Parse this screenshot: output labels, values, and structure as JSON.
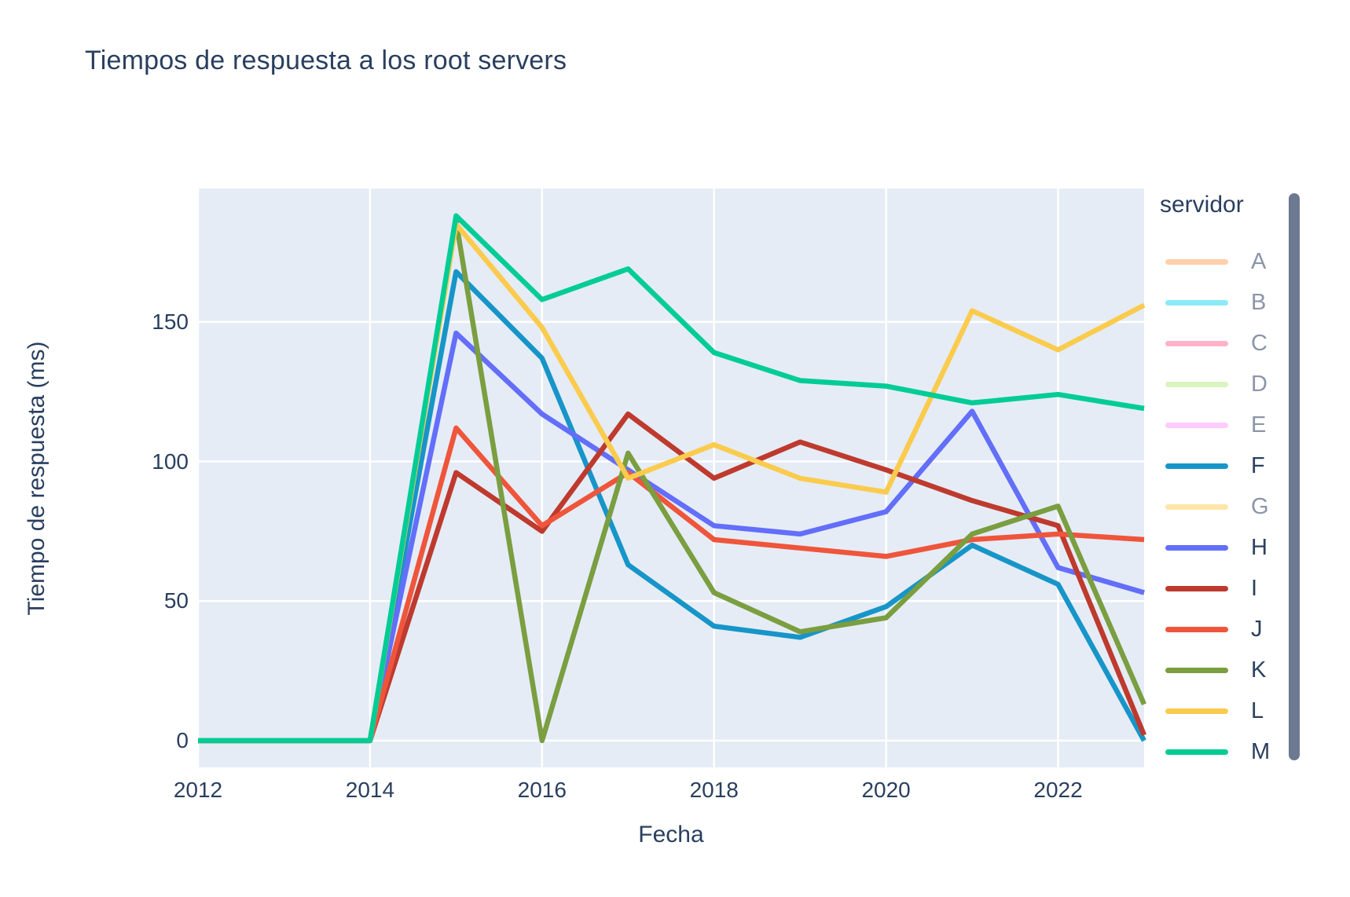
{
  "title": "Tiempos de respuesta a los root servers",
  "colors": {
    "plot_bg": "#e5ecf6",
    "grid": "#ffffff",
    "text": "#2a3f5f",
    "muted_text": "#8b95a9",
    "legend_scrollbar": "#6d7990"
  },
  "chart_data": {
    "type": "line",
    "title": "Tiempos de respuesta a los root servers",
    "xlabel": "Fecha",
    "ylabel": "Tiempo de respuesta (ms)",
    "legend_title": "servidor",
    "grid": true,
    "legend_position": "right",
    "x": [
      2012,
      2013,
      2014,
      2015,
      2016,
      2017,
      2018,
      2019,
      2020,
      2021,
      2022,
      2023
    ],
    "x_tick_labels": [
      "2012",
      "2014",
      "2016",
      "2018",
      "2020",
      "2022"
    ],
    "x_ticks": [
      2012,
      2014,
      2016,
      2018,
      2020,
      2022
    ],
    "y_tick_labels": [
      "0",
      "50",
      "100",
      "150"
    ],
    "y_ticks": [
      0,
      50,
      100,
      150
    ],
    "x_range": [
      2012,
      2023
    ],
    "y_range": [
      -9.6,
      197.8
    ],
    "series": [
      {
        "name": "A",
        "color": "#FFA15A",
        "visible": false
      },
      {
        "name": "B",
        "color": "#19D3F3",
        "visible": false
      },
      {
        "name": "C",
        "color": "#FF6692",
        "visible": false
      },
      {
        "name": "D",
        "color": "#B6E880",
        "visible": false
      },
      {
        "name": "E",
        "color": "#FF97FF",
        "visible": false
      },
      {
        "name": "F",
        "color": "#1795C8",
        "visible": true,
        "values": [
          0,
          0,
          0,
          168,
          137,
          63,
          41,
          37,
          48,
          70,
          56,
          0
        ]
      },
      {
        "name": "G",
        "color": "#FECB52",
        "visible": false
      },
      {
        "name": "H",
        "color": "#636EFA",
        "visible": true,
        "values": [
          0,
          0,
          0,
          146,
          117,
          97,
          77,
          74,
          82,
          118,
          62,
          53
        ]
      },
      {
        "name": "I",
        "color": "#BE3A2E",
        "visible": true,
        "values": [
          0,
          0,
          0,
          96,
          75,
          117,
          94,
          107,
          97,
          86,
          77,
          2
        ]
      },
      {
        "name": "J",
        "color": "#EF553B",
        "visible": true,
        "values": [
          0,
          0,
          0,
          112,
          77,
          96,
          72,
          69,
          66,
          72,
          74,
          72
        ]
      },
      {
        "name": "K",
        "color": "#7A9E40",
        "visible": true,
        "values": [
          0,
          0,
          0,
          186,
          0,
          103,
          53,
          39,
          44,
          74,
          84,
          13
        ]
      },
      {
        "name": "L",
        "color": "#FBCB4D",
        "visible": true,
        "values": [
          0,
          0,
          0,
          185,
          148,
          94,
          106,
          94,
          89,
          154,
          140,
          156
        ]
      },
      {
        "name": "M",
        "color": "#00CC96",
        "visible": true,
        "values": [
          0,
          0,
          0,
          188,
          158,
          169,
          139,
          129,
          127,
          121,
          124,
          119
        ]
      }
    ]
  }
}
